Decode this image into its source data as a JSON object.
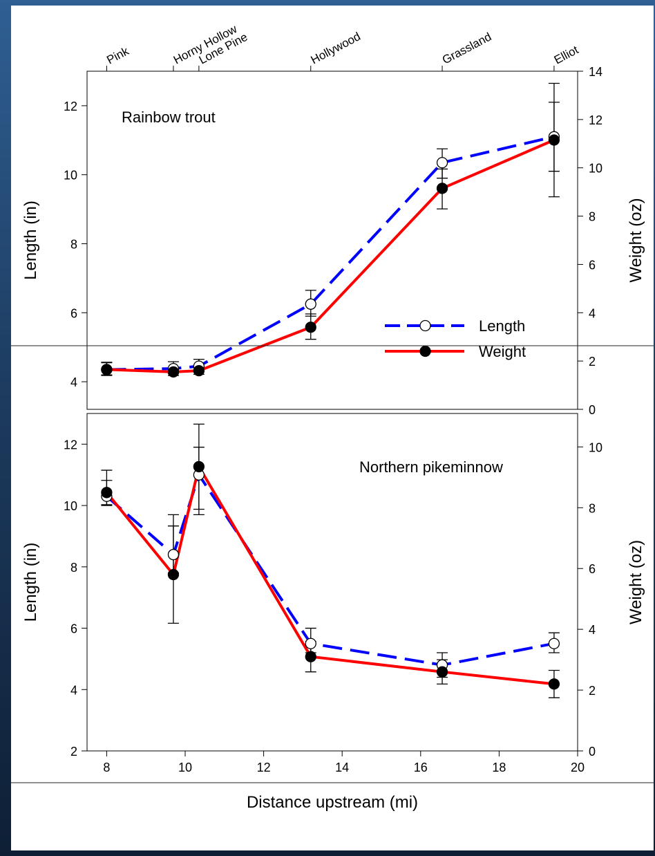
{
  "colors": {
    "background_top": "#2f5f93",
    "background_bottom": "#0e1f35",
    "panel": "#ffffff",
    "length_series": "#0000ff",
    "weight_series": "#ff0000"
  },
  "chart_data": [
    {
      "type": "line",
      "title": "Rainbow trout",
      "xlabel": "",
      "ylabel_left": "Length (in)",
      "ylabel_right": "Weight (oz)",
      "xlim": [
        7.5,
        20
      ],
      "ylim_left": [
        3.2,
        13
      ],
      "ylim_right": [
        0,
        14
      ],
      "yticks_left": [
        4,
        6,
        8,
        10,
        12
      ],
      "yticks_right": [
        0,
        2,
        4,
        6,
        8,
        10,
        12,
        14
      ],
      "top_axis_labels": [
        {
          "x": 8.0,
          "label": "Pink"
        },
        {
          "x": 9.7,
          "label": "Horny Hollow"
        },
        {
          "x": 10.35,
          "label": "Lone Pine"
        },
        {
          "x": 13.2,
          "label": "Hollywood"
        },
        {
          "x": 16.55,
          "label": "Grassland"
        },
        {
          "x": 19.4,
          "label": "Elliot"
        }
      ],
      "legend": {
        "placement": "bottom-right",
        "entries": [
          "Length",
          "Weight"
        ]
      },
      "series": [
        {
          "name": "Length",
          "axis": "left",
          "style": "dashed",
          "marker": "open-circle",
          "x": [
            8.0,
            9.7,
            10.35,
            13.2,
            16.55,
            19.4
          ],
          "y": [
            4.35,
            4.38,
            4.45,
            6.25,
            10.35,
            11.1
          ],
          "err_low": [
            0.15,
            0.15,
            0.15,
            0.35,
            0.45,
            1.0
          ],
          "err_high": [
            0.2,
            0.2,
            0.2,
            0.4,
            0.4,
            1.0
          ]
        },
        {
          "name": "Weight",
          "axis": "right",
          "style": "solid",
          "marker": "filled-circle",
          "x": [
            8.0,
            9.7,
            10.35,
            13.2,
            16.55,
            19.4
          ],
          "y": [
            1.65,
            1.55,
            1.6,
            3.4,
            9.15,
            11.15
          ],
          "err_low": [
            0.25,
            0.15,
            0.15,
            0.5,
            0.85,
            2.35
          ],
          "err_high": [
            0.3,
            0.15,
            0.15,
            0.55,
            0.8,
            2.35
          ]
        }
      ]
    },
    {
      "type": "line",
      "title": "Northern pikeminnow",
      "xlabel": "Distance upstream (mi)",
      "ylabel_left": "Length (in)",
      "ylabel_right": "Weight (oz)",
      "xlim": [
        7.5,
        20
      ],
      "ylim_left": [
        2,
        13
      ],
      "ylim_right": [
        0,
        11.1
      ],
      "yticks_left": [
        2,
        4,
        6,
        8,
        10,
        12
      ],
      "yticks_right": [
        0,
        2,
        4,
        6,
        8,
        10
      ],
      "xticks": [
        8,
        10,
        12,
        14,
        16,
        18,
        20
      ],
      "series": [
        {
          "name": "Length",
          "axis": "left",
          "style": "dashed",
          "marker": "open-circle",
          "x": [
            8.0,
            9.7,
            10.35,
            13.2,
            16.55,
            19.4
          ],
          "y": [
            10.3,
            8.4,
            11.0,
            5.5,
            4.8,
            5.5
          ],
          "err_low": [
            0.3,
            0.6,
            1.3,
            0.3,
            0.4,
            0.3
          ],
          "err_high": [
            0.85,
            1.3,
            0.9,
            0.5,
            0.4,
            0.35
          ]
        },
        {
          "name": "Weight",
          "axis": "right",
          "style": "solid",
          "marker": "filled-circle",
          "x": [
            8.0,
            9.7,
            10.35,
            13.2,
            16.55,
            19.4
          ],
          "y": [
            8.5,
            5.8,
            9.35,
            3.1,
            2.6,
            2.2
          ],
          "err_low": [
            0.4,
            1.6,
            1.4,
            0.5,
            0.4,
            0.45
          ],
          "err_high": [
            0.4,
            1.6,
            1.4,
            0.5,
            0.4,
            0.45
          ]
        }
      ]
    }
  ]
}
